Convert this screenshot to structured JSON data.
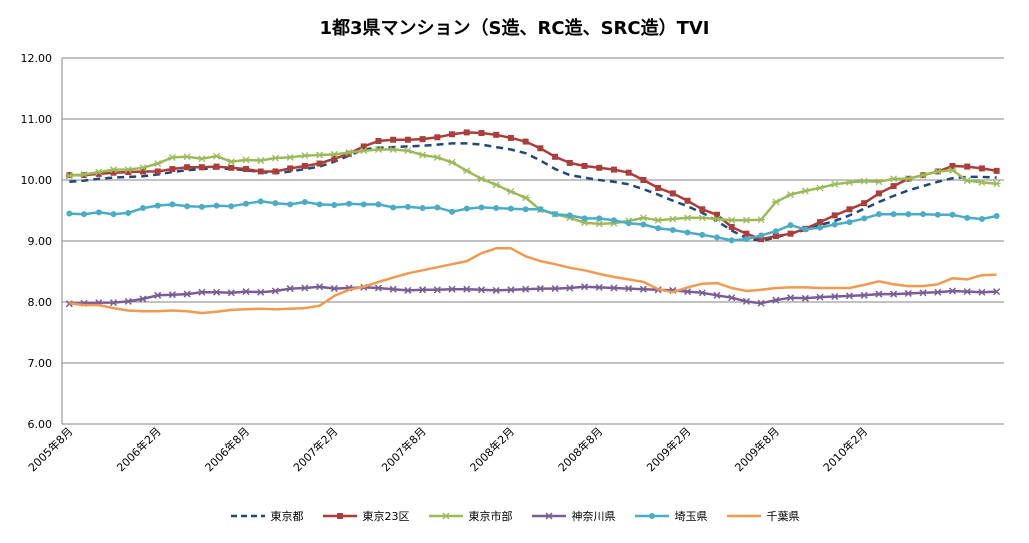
{
  "chart_data": {
    "type": "line",
    "title": "1都3県マンション（S造、RC造、SRC造）TVI",
    "xlabel": "",
    "ylabel": "",
    "ylim": [
      6.0,
      12.0
    ],
    "y_ticks": [
      "6.00",
      "7.00",
      "8.00",
      "9.00",
      "10.00",
      "11.00",
      "12.00"
    ],
    "x_tick_labels": [
      "2005年8月",
      "2006年2月",
      "2006年8月",
      "2007年2月",
      "2007年8月",
      "2008年2月",
      "2008年8月",
      "2009年2月",
      "2009年8月",
      "2010年2月"
    ],
    "x_start": "2005-08",
    "grid": true,
    "legend_position": "bottom",
    "series": [
      {
        "name": "東京都",
        "color": "#1F497D",
        "style": "dashed",
        "marker": "none",
        "values": [
          9.97,
          9.99,
          10.02,
          10.04,
          10.05,
          10.06,
          10.09,
          10.13,
          10.16,
          10.18,
          10.19,
          10.18,
          10.16,
          10.13,
          10.11,
          10.14,
          10.18,
          10.22,
          10.3,
          10.4,
          10.5,
          10.53,
          10.54,
          10.55,
          10.56,
          10.58,
          10.6,
          10.6,
          10.58,
          10.54,
          10.5,
          10.44,
          10.32,
          10.18,
          10.08,
          10.04,
          10.0,
          9.97,
          9.93,
          9.85,
          9.76,
          9.66,
          9.57,
          9.46,
          9.33,
          9.17,
          9.05,
          9.0,
          9.06,
          9.12,
          9.18,
          9.26,
          9.33,
          9.42,
          9.53,
          9.64,
          9.74,
          9.83,
          9.9,
          9.97,
          10.03,
          10.05,
          10.05,
          10.04
        ]
      },
      {
        "name": "東京23区",
        "color": "#A93E3B",
        "style": "solid",
        "marker": "square",
        "values": [
          10.08,
          10.08,
          10.1,
          10.12,
          10.13,
          10.14,
          10.14,
          10.18,
          10.21,
          10.21,
          10.22,
          10.2,
          10.18,
          10.14,
          10.14,
          10.19,
          10.23,
          10.27,
          10.35,
          10.43,
          10.55,
          10.64,
          10.66,
          10.66,
          10.67,
          10.7,
          10.75,
          10.78,
          10.77,
          10.74,
          10.69,
          10.63,
          10.52,
          10.38,
          10.28,
          10.23,
          10.2,
          10.17,
          10.12,
          10.0,
          9.87,
          9.78,
          9.66,
          9.52,
          9.43,
          9.23,
          9.12,
          9.03,
          9.08,
          9.12,
          9.2,
          9.31,
          9.42,
          9.52,
          9.62,
          9.78,
          9.9,
          10.02,
          10.08,
          10.14,
          10.23,
          10.22,
          10.19,
          10.15
        ]
      },
      {
        "name": "東京市部",
        "color": "#9BBB59",
        "style": "solid",
        "marker": "star",
        "values": [
          10.07,
          10.09,
          10.13,
          10.17,
          10.17,
          10.2,
          10.27,
          10.37,
          10.38,
          10.35,
          10.39,
          10.3,
          10.33,
          10.32,
          10.36,
          10.37,
          10.4,
          10.41,
          10.42,
          10.45,
          10.48,
          10.5,
          10.5,
          10.48,
          10.41,
          10.37,
          10.29,
          10.15,
          10.02,
          9.92,
          9.81,
          9.71,
          9.51,
          9.44,
          9.38,
          9.3,
          9.28,
          9.29,
          9.33,
          9.38,
          9.34,
          9.36,
          9.38,
          9.38,
          9.36,
          9.34,
          9.34,
          9.35,
          9.64,
          9.76,
          9.82,
          9.87,
          9.93,
          9.96,
          9.98,
          9.97,
          10.02,
          10.02,
          10.08,
          10.14,
          10.16,
          9.99,
          9.96,
          9.94
        ]
      },
      {
        "name": "神奈川県",
        "color": "#7A5C96",
        "style": "solid",
        "marker": "cross",
        "values": [
          7.97,
          7.98,
          7.99,
          7.99,
          8.01,
          8.05,
          8.11,
          8.12,
          8.13,
          8.16,
          8.16,
          8.15,
          8.17,
          8.16,
          8.18,
          8.22,
          8.23,
          8.25,
          8.22,
          8.23,
          8.24,
          8.23,
          8.21,
          8.19,
          8.2,
          8.2,
          8.21,
          8.21,
          8.2,
          8.19,
          8.2,
          8.21,
          8.22,
          8.22,
          8.23,
          8.25,
          8.24,
          8.23,
          8.22,
          8.21,
          8.2,
          8.19,
          8.17,
          8.15,
          8.11,
          8.07,
          8.01,
          7.98,
          8.03,
          8.07,
          8.06,
          8.08,
          8.09,
          8.1,
          8.11,
          8.13,
          8.13,
          8.14,
          8.15,
          8.16,
          8.18,
          8.17,
          8.16,
          8.17
        ]
      },
      {
        "name": "埼玉県",
        "color": "#4BACC6",
        "style": "solid",
        "marker": "circle",
        "values": [
          9.45,
          9.44,
          9.47,
          9.44,
          9.46,
          9.54,
          9.58,
          9.6,
          9.57,
          9.56,
          9.58,
          9.57,
          9.61,
          9.65,
          9.62,
          9.6,
          9.64,
          9.6,
          9.59,
          9.61,
          9.6,
          9.6,
          9.55,
          9.56,
          9.54,
          9.55,
          9.48,
          9.53,
          9.55,
          9.54,
          9.53,
          9.52,
          9.52,
          9.44,
          9.42,
          9.37,
          9.37,
          9.34,
          9.29,
          9.27,
          9.21,
          9.18,
          9.14,
          9.1,
          9.06,
          9.01,
          9.03,
          9.09,
          9.16,
          9.26,
          9.19,
          9.22,
          9.27,
          9.31,
          9.37,
          9.44,
          9.44,
          9.44,
          9.44,
          9.43,
          9.43,
          9.38,
          9.36,
          9.41
        ]
      },
      {
        "name": "千葉県",
        "color": "#F19A4F",
        "style": "solid",
        "marker": "none",
        "values": [
          7.98,
          7.95,
          7.95,
          7.9,
          7.86,
          7.85,
          7.85,
          7.86,
          7.85,
          7.82,
          7.84,
          7.87,
          7.88,
          7.89,
          7.88,
          7.89,
          7.9,
          7.94,
          8.1,
          8.2,
          8.25,
          8.33,
          8.4,
          8.47,
          8.52,
          8.57,
          8.62,
          8.67,
          8.8,
          8.88,
          8.88,
          8.75,
          8.67,
          8.62,
          8.56,
          8.52,
          8.46,
          8.41,
          8.37,
          8.33,
          8.21,
          8.16,
          8.24,
          8.3,
          8.31,
          8.23,
          8.18,
          8.2,
          8.23,
          8.24,
          8.24,
          8.23,
          8.23,
          8.23,
          8.28,
          8.34,
          8.29,
          8.26,
          8.26,
          8.29,
          8.39,
          8.37,
          8.44,
          8.45
        ]
      }
    ]
  }
}
